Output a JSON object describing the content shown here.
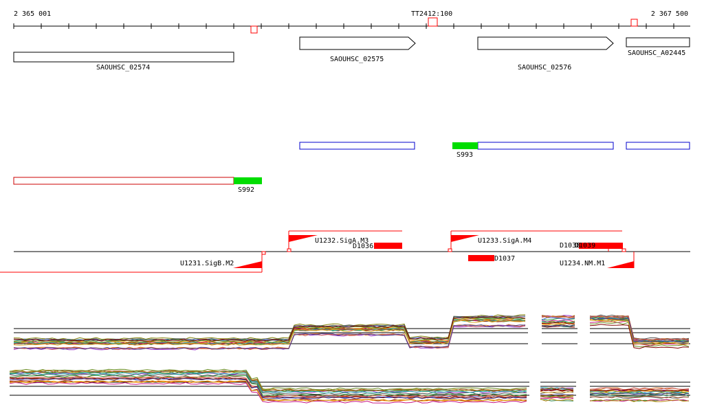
{
  "ruler": {
    "start_label": "2 365 001",
    "end_label": "2 367 500",
    "terminator_label": "TT2412:100"
  },
  "genes": [
    {
      "id": "SAOUHSC_02574",
      "label": "SAOUHSC_02574",
      "strand": "-"
    },
    {
      "id": "SAOUHSC_02575",
      "label": "SAOUHSC_02575",
      "strand": "+"
    },
    {
      "id": "SAOUHSC_02576",
      "label": "SAOUHSC_02576",
      "strand": "+"
    },
    {
      "id": "SAOUHSC_A02445",
      "label": "SAOUHSC_A02445",
      "strand": "+"
    }
  ],
  "small_rnas": [
    {
      "id": "S993",
      "label": "S993",
      "color": "#00dd00"
    },
    {
      "id": "S992",
      "label": "S992",
      "color": "#00dd00"
    }
  ],
  "transcription_units": [
    {
      "id": "U1232.SigA.M3",
      "label": "U1232.SigA.M3",
      "strand": "+"
    },
    {
      "id": "U1233.SigA.M4",
      "label": "U1233.SigA.M4",
      "strand": "+"
    },
    {
      "id": "U1231.SigB.M2",
      "label": "U1231.SigB.M2",
      "strand": "-"
    },
    {
      "id": "U1234.NM.M1",
      "label": "U1234.NM.M1",
      "strand": "-"
    }
  ],
  "downshifts": [
    {
      "id": "D1036",
      "label": "D1036"
    },
    {
      "id": "D1037",
      "label": "D1037"
    },
    {
      "id": "D1038",
      "label": "D1038"
    },
    {
      "id": "D1039",
      "label": "D1039"
    }
  ],
  "colors": {
    "gene_outline": "#000000",
    "promoter_red": "#ff0000",
    "transcript_blue": "#0000cc",
    "transcript_red": "#cc0000",
    "srna_green": "#00dd00"
  },
  "expression_palette": [
    "#8b0000",
    "#228b22",
    "#ff8c00",
    "#4169e1",
    "#9932cc",
    "#d2691e",
    "#808000",
    "#c71585",
    "#2e8b57",
    "#b8860b",
    "#555555",
    "#20b2aa",
    "#a0522d",
    "#6b8e23",
    "#cd5c5c",
    "#daa520",
    "#800000",
    "#483d8b"
  ]
}
